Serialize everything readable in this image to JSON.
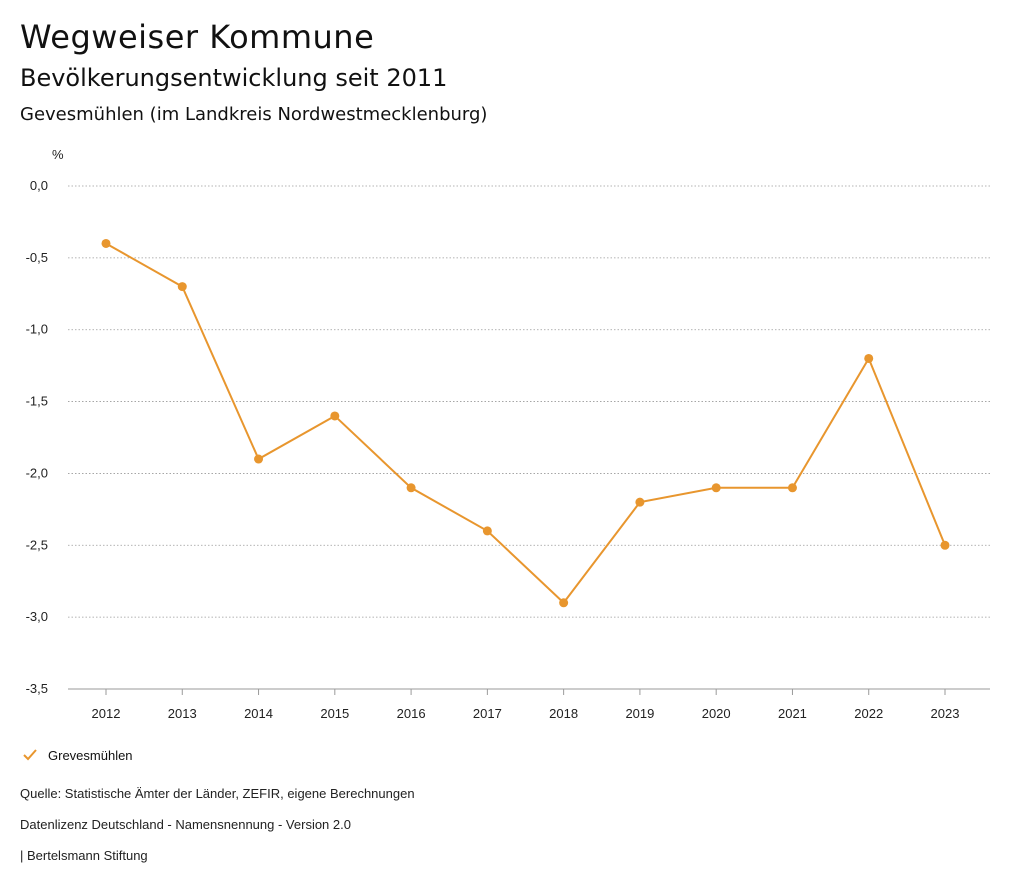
{
  "header": {
    "title": "Wegweiser Kommune",
    "subtitle": "Bevölkerungsentwicklung seit 2011",
    "region": "Gevesmühlen (im Landkreis Nordwestmecklenburg)"
  },
  "chart_data": {
    "type": "line",
    "ylabel": "%",
    "x": [
      "2012",
      "2013",
      "2014",
      "2015",
      "2016",
      "2017",
      "2018",
      "2019",
      "2020",
      "2021",
      "2022",
      "2023"
    ],
    "series": [
      {
        "name": "Grevesmühlen",
        "color": "#e8962e",
        "values": [
          -0.4,
          -0.7,
          -1.9,
          -1.6,
          -2.1,
          -2.4,
          -2.9,
          -2.2,
          -2.1,
          -2.1,
          -1.2,
          -2.5
        ]
      }
    ],
    "ylim": [
      -3.5,
      0.0
    ],
    "yticks": [
      0.0,
      -0.5,
      -1.0,
      -1.5,
      -2.0,
      -2.5,
      -3.0,
      -3.5
    ],
    "ytick_labels": [
      "0,0",
      "-0,5",
      "-1,0",
      "-1,5",
      "-2,0",
      "-2,5",
      "-3,0",
      "-3,5"
    ],
    "grid": true,
    "legend_position": "bottom-left"
  },
  "legend": {
    "label": "Grevesmühlen",
    "icon": "check-mark-icon"
  },
  "footer": {
    "source": "Quelle: Statistische Ämter der Länder, ZEFIR, eigene Berechnungen",
    "license": "Datenlizenz Deutschland - Namensnennung - Version 2.0",
    "publisher": "| Bertelsmann Stiftung"
  }
}
